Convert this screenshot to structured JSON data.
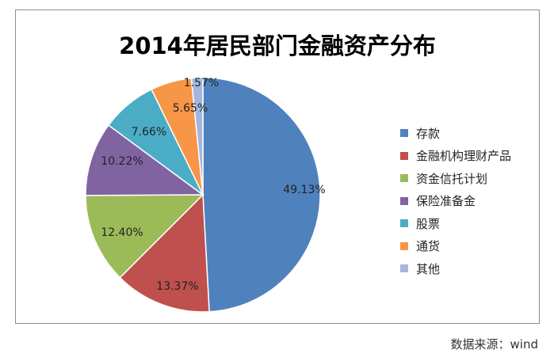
{
  "chart_data": {
    "type": "pie",
    "title": "2014年居民部门金融资产分布",
    "categories": [
      "存款",
      "金融机构理财产品",
      "资金信托计划",
      "保险准备金",
      "股票",
      "通货",
      "其他"
    ],
    "values": [
      49.13,
      13.37,
      12.4,
      10.22,
      7.66,
      5.65,
      1.57
    ],
    "data_labels": [
      "49.13%",
      "13.37%",
      "12.40%",
      "10.22%",
      "7.66%",
      "5.65%",
      "1.57%"
    ],
    "colors": [
      "#4F81BD",
      "#C0504D",
      "#9BBB59",
      "#8064A2",
      "#4BACC6",
      "#F79646",
      "#A5B6DE"
    ],
    "legend_position": "right",
    "start_angle": "12 o'clock, clockwise"
  },
  "source_note": "数据来源：wind"
}
